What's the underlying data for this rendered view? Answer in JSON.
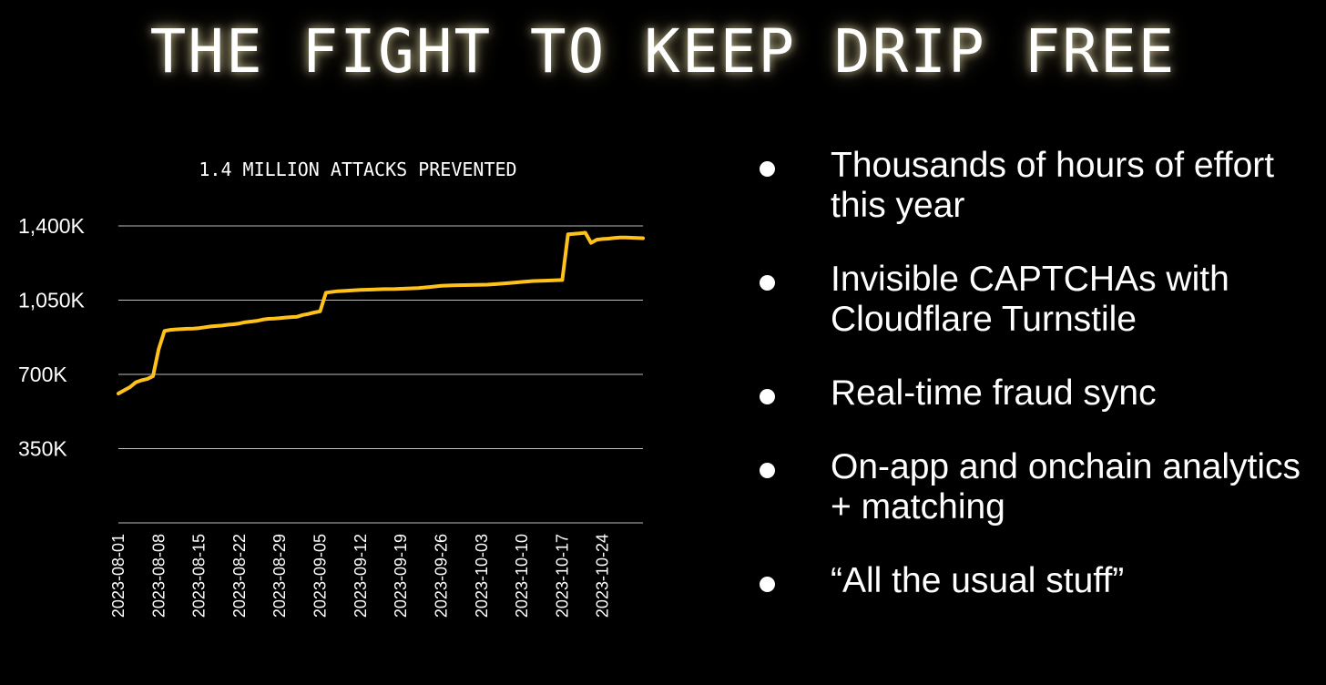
{
  "page": {
    "title": "THE FIGHT TO KEEP DRIP FREE"
  },
  "chart_data": {
    "type": "line",
    "title": "1.4 MILLION ATTACKS PREVENTED",
    "line_color": "#FFC21A",
    "grid": true,
    "ylim": [
      0,
      1400000
    ],
    "yticks": [
      350000,
      700000,
      1050000,
      1400000
    ],
    "ytick_labels": [
      "350K",
      "700K",
      "1,050K",
      "1,400K"
    ],
    "xticks": [
      "2023-08-01",
      "2023-08-08",
      "2023-08-15",
      "2023-08-22",
      "2023-08-29",
      "2023-09-05",
      "2023-09-12",
      "2023-09-19",
      "2023-09-26",
      "2023-10-03",
      "2023-10-10",
      "2023-10-17",
      "2023-10-24"
    ],
    "xlim": [
      "2023-08-01",
      "2023-10-31"
    ],
    "series": [
      {
        "x": [
          "2023-08-01",
          "2023-08-02",
          "2023-08-03",
          "2023-08-04",
          "2023-08-05",
          "2023-08-06",
          "2023-08-07",
          "2023-08-08",
          "2023-08-09",
          "2023-08-10",
          "2023-08-11",
          "2023-08-12",
          "2023-08-13",
          "2023-08-14",
          "2023-08-15",
          "2023-08-16",
          "2023-08-17",
          "2023-08-18",
          "2023-08-19",
          "2023-08-20",
          "2023-08-21",
          "2023-08-22",
          "2023-08-23",
          "2023-08-24",
          "2023-08-25",
          "2023-08-26",
          "2023-08-27",
          "2023-08-28",
          "2023-08-29",
          "2023-08-30",
          "2023-08-31",
          "2023-09-01",
          "2023-09-02",
          "2023-09-03",
          "2023-09-04",
          "2023-09-05",
          "2023-09-06",
          "2023-09-08",
          "2023-09-10",
          "2023-09-12",
          "2023-09-14",
          "2023-09-16",
          "2023-09-18",
          "2023-09-20",
          "2023-09-22",
          "2023-09-24",
          "2023-09-26",
          "2023-09-28",
          "2023-09-30",
          "2023-10-02",
          "2023-10-04",
          "2023-10-06",
          "2023-10-08",
          "2023-10-10",
          "2023-10-12",
          "2023-10-14",
          "2023-10-16",
          "2023-10-17",
          "2023-10-18",
          "2023-10-19",
          "2023-10-20",
          "2023-10-21",
          "2023-10-22",
          "2023-10-23",
          "2023-10-24",
          "2023-10-25",
          "2023-10-26",
          "2023-10-27",
          "2023-10-28",
          "2023-10-29",
          "2023-10-30",
          "2023-10-31"
        ],
        "y": [
          610000,
          625000,
          640000,
          662000,
          672000,
          678000,
          692000,
          820000,
          905000,
          910000,
          912000,
          914000,
          915000,
          916000,
          918000,
          922000,
          926000,
          928000,
          930000,
          934000,
          936000,
          940000,
          946000,
          949000,
          952000,
          958000,
          962000,
          963000,
          965000,
          968000,
          970000,
          972000,
          980000,
          985000,
          992000,
          997000,
          1085000,
          1092000,
          1095000,
          1098000,
          1100000,
          1102000,
          1103000,
          1105000,
          1107000,
          1112000,
          1118000,
          1120000,
          1121000,
          1122000,
          1123000,
          1127000,
          1131000,
          1136000,
          1140000,
          1142000,
          1144000,
          1145000,
          1360000,
          1362000,
          1365000,
          1368000,
          1320000,
          1335000,
          1338000,
          1340000,
          1343000,
          1345000,
          1345000,
          1344000,
          1343000,
          1342000
        ]
      }
    ]
  },
  "bullets": [
    "Thousands of hours of effort this year",
    "Invisible CAPTCHAs with Cloudflare Turnstile",
    "Real-time fraud sync",
    "On-app and onchain analytics + matching",
    "“All the usual stuff”"
  ]
}
